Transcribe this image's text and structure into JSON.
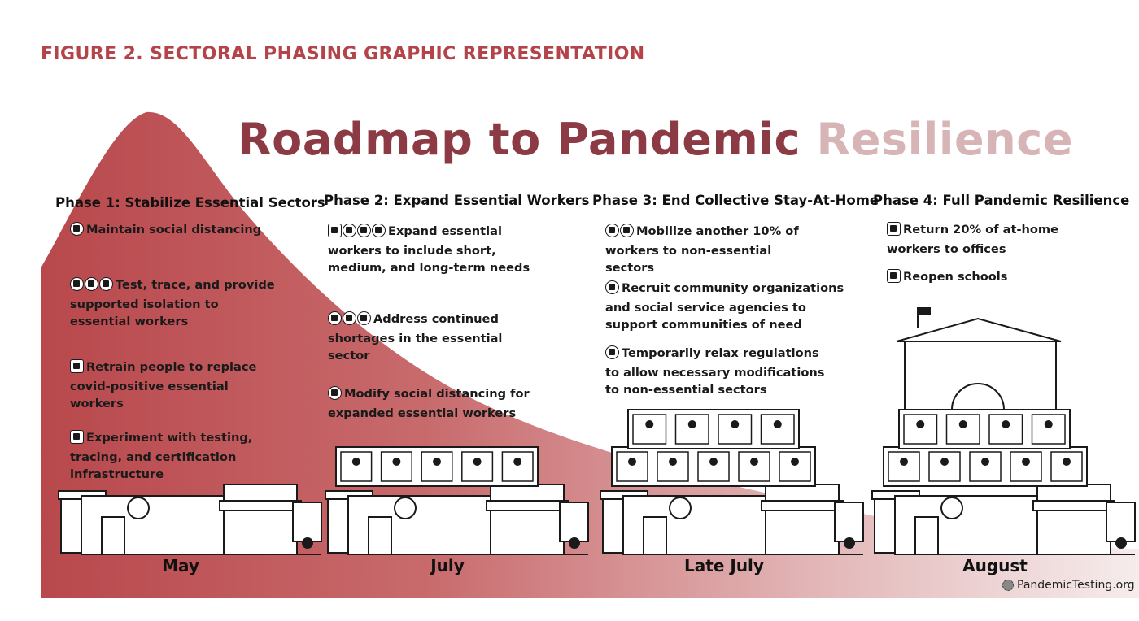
{
  "figure_title": "FIGURE 2. SECTORAL PHASING GRAPHIC REPRESENTATION",
  "main_title": {
    "part1": "Roadmap to Pandemic ",
    "part2": "Resilience",
    "colors": {
      "part1": "#8c3a44",
      "part2": "#d7b4b6"
    }
  },
  "curve_color": "#c0575a",
  "phases": [
    {
      "title": "Phase 1: Stabilize Essential Sectors",
      "month": "May",
      "items": [
        {
          "icons": [
            "home-icon"
          ],
          "text": "Maintain social distancing"
        },
        {
          "icons": [
            "factory-icon",
            "health-icon",
            "box-icon"
          ],
          "text": "Test, trace, and provide supported isolation to essential workers"
        },
        {
          "icons": [
            "retrain-icon"
          ],
          "text": "Retrain people to replace covid-positive essential workers"
        },
        {
          "icons": [
            "lab-icon"
          ],
          "text": "Experiment with testing, tracing, and certification infrastructure"
        }
      ]
    },
    {
      "title": "Phase 2: Expand Essential Workers",
      "month": "July",
      "items": [
        {
          "icons": [
            "lab-icon",
            "people-icon",
            "money-bag-icon",
            "tools-icon"
          ],
          "text": "Expand essential workers to include short, medium, and long-term needs"
        },
        {
          "icons": [
            "factory-icon",
            "health-icon",
            "box-icon"
          ],
          "text": "Address continued shortages in the essential sector"
        },
        {
          "icons": [
            "home-icon"
          ],
          "text": "Modify social distancing for expanded essential workers"
        }
      ]
    },
    {
      "title": "Phase 3: End Collective Stay-At-Home",
      "month": "Late July",
      "items": [
        {
          "icons": [
            "tools-icon",
            "utensils-icon"
          ],
          "text": "Mobilize another 10% of workers to non-essential sectors"
        },
        {
          "icons": [
            "community-icon"
          ],
          "text": "Recruit community organizations and social service agencies to support communities of need"
        },
        {
          "icons": [
            "money-icon"
          ],
          "text": "Temporarily relax regulations to allow necessary modifications to non-essential sectors"
        }
      ]
    },
    {
      "title": "Phase 4: Full Pandemic Resilience",
      "month": "August",
      "items": [
        {
          "icons": [
            "laptop-icon"
          ],
          "text": "Return 20% of at-home workers to offices"
        },
        {
          "icons": [
            "book-icon"
          ],
          "text": "Reopen schools"
        }
      ]
    }
  ],
  "footer": "PandemicTesting.org"
}
